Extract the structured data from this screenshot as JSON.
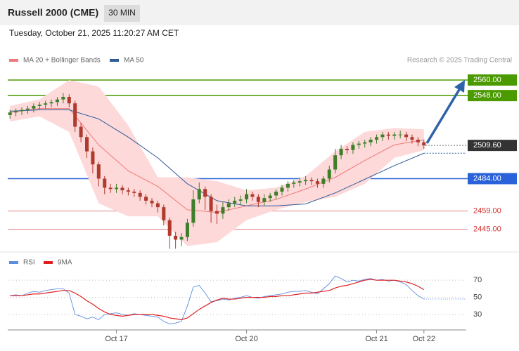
{
  "header": {
    "title": "Russell 2000 (CME)",
    "timeframe": "30 MIN",
    "timestamp": "Tuesday, October 21, 2025 11:20:27 AM CET"
  },
  "credit": "Research © 2025 Trading Central",
  "chart_data": [
    {
      "type": "candlestick",
      "xlim": [
        -0.5,
        70.5
      ],
      "ylim": [
        2428,
        2600
      ],
      "up_color": "#3f7f2a",
      "down_color": "#b03a2e",
      "open": [
        2533,
        2535,
        2536,
        2537,
        2538,
        2540,
        2541,
        2542,
        2543,
        2545,
        2547,
        2542,
        2524,
        2516,
        2505,
        2495,
        2484,
        2477,
        2476,
        2477,
        2475,
        2474,
        2473,
        2470,
        2467,
        2465,
        2462,
        2452,
        2440,
        2437,
        2439,
        2450,
        2468,
        2476,
        2470,
        2459,
        2457,
        2462,
        2465,
        2467,
        2468,
        2472,
        2470,
        2466,
        2469,
        2471,
        2474,
        2477,
        2480,
        2481,
        2482,
        2483,
        2482,
        2480,
        2484,
        2491,
        2502,
        2507,
        2506,
        2510,
        2511,
        2512,
        2514,
        2516,
        2518,
        2517,
        2518,
        2518,
        2516,
        2514,
        2512
      ],
      "high": [
        2537,
        2538,
        2539,
        2540,
        2542,
        2543,
        2544,
        2545,
        2547,
        2550,
        2549,
        2544,
        2527,
        2518,
        2508,
        2497,
        2486,
        2480,
        2480,
        2479,
        2477,
        2476,
        2475,
        2472,
        2469,
        2467,
        2464,
        2454,
        2443,
        2442,
        2453,
        2475,
        2481,
        2478,
        2472,
        2464,
        2466,
        2468,
        2470,
        2471,
        2476,
        2474,
        2472,
        2472,
        2473,
        2476,
        2479,
        2482,
        2483,
        2485,
        2486,
        2485,
        2484,
        2486,
        2494,
        2507,
        2510,
        2509,
        2512,
        2513,
        2514,
        2516,
        2518,
        2520,
        2520,
        2520,
        2521,
        2520,
        2518,
        2516,
        2514
      ],
      "low": [
        2530,
        2532,
        2533,
        2534,
        2535,
        2537,
        2538,
        2539,
        2540,
        2542,
        2539,
        2520,
        2512,
        2500,
        2488,
        2478,
        2472,
        2473,
        2473,
        2472,
        2471,
        2470,
        2467,
        2464,
        2462,
        2458,
        2448,
        2430,
        2430,
        2432,
        2436,
        2447,
        2465,
        2460,
        2450,
        2449,
        2453,
        2459,
        2462,
        2464,
        2465,
        2467,
        2462,
        2463,
        2466,
        2468,
        2471,
        2474,
        2477,
        2478,
        2479,
        2479,
        2477,
        2477,
        2481,
        2488,
        2499,
        2503,
        2503,
        2507,
        2508,
        2509,
        2511,
        2513,
        2514,
        2514,
        2515,
        2513,
        2511,
        2509,
        2507
      ],
      "close": [
        2535,
        2536,
        2537,
        2538,
        2540,
        2541,
        2542,
        2543,
        2545,
        2547,
        2542,
        2524,
        2516,
        2505,
        2495,
        2484,
        2477,
        2476,
        2477,
        2475,
        2474,
        2473,
        2470,
        2467,
        2465,
        2462,
        2452,
        2440,
        2437,
        2439,
        2450,
        2468,
        2476,
        2470,
        2459,
        2457,
        2462,
        2465,
        2467,
        2468,
        2472,
        2470,
        2466,
        2469,
        2471,
        2474,
        2477,
        2480,
        2481,
        2482,
        2483,
        2482,
        2480,
        2484,
        2491,
        2502,
        2507,
        2506,
        2510,
        2511,
        2512,
        2514,
        2516,
        2518,
        2517,
        2518,
        2518,
        2516,
        2514,
        2512,
        2509.6
      ],
      "series": [
        {
          "name": "MA 20 + Bollinger Bands",
          "color": "#f07a7a",
          "band_color": "#fdd9d9",
          "x": [
            0,
            5,
            10,
            15,
            20,
            25,
            30,
            35,
            40,
            45,
            50,
            55,
            60,
            65,
            70
          ],
          "values": [
            2535,
            2538,
            2538,
            2510,
            2490,
            2478,
            2460,
            2458,
            2463,
            2468,
            2476,
            2485,
            2498,
            2510,
            2514
          ],
          "upper": [
            2540,
            2545,
            2560,
            2555,
            2525,
            2485,
            2485,
            2482,
            2475,
            2477,
            2486,
            2505,
            2520,
            2523,
            2522
          ],
          "lower": [
            2528,
            2532,
            2520,
            2465,
            2455,
            2455,
            2432,
            2435,
            2452,
            2460,
            2466,
            2470,
            2480,
            2500,
            2506
          ]
        },
        {
          "name": "MA 50",
          "color": "#2f5b9a",
          "x": [
            0,
            5,
            10,
            15,
            20,
            25,
            30,
            35,
            40,
            45,
            50,
            55,
            60,
            65,
            70
          ],
          "values": [
            2536,
            2537,
            2537,
            2530,
            2516,
            2500,
            2480,
            2467,
            2463,
            2463,
            2464.5,
            2473,
            2483.5,
            2494,
            2503.6
          ]
        }
      ],
      "levels": [
        {
          "value": 2560,
          "label": "2560.00",
          "color": "#4a9a00",
          "boxed": true
        },
        {
          "value": 2548,
          "label": "2548.00",
          "color": "#4a9a00",
          "boxed": true
        },
        {
          "value": 2509.6,
          "label": "2509.60",
          "color": "#333333",
          "boxed": true
        },
        {
          "value": 2484,
          "label": "2484.00",
          "color": "#2a62d9",
          "boxed": true
        },
        {
          "value": 2459,
          "label": "2459.00",
          "color": "#d32f2f",
          "boxed": false
        },
        {
          "value": 2445,
          "label": "2445.00",
          "color": "#d32f2f",
          "boxed": false
        }
      ]
    },
    {
      "type": "line",
      "xlim": [
        -0.5,
        70.5
      ],
      "ylim": [
        12,
        98
      ],
      "yticks": [
        70,
        50,
        30
      ],
      "xticks": [
        {
          "value": 18,
          "label": "Oct 17"
        },
        {
          "value": 40,
          "label": "Oct 20"
        },
        {
          "value": 62,
          "label": "Oct 21"
        },
        {
          "value": 70,
          "label": "Oct 22"
        }
      ],
      "series": [
        {
          "name": "RSI",
          "color": "#5b8de0",
          "values": [
            52,
            53,
            52,
            55,
            57,
            56,
            58,
            59,
            60,
            60,
            55,
            30,
            28,
            25,
            27,
            24,
            30,
            31,
            32,
            30,
            29,
            31,
            30,
            29,
            28,
            27,
            22,
            19,
            20,
            22,
            40,
            62,
            64,
            55,
            45,
            46,
            48,
            47,
            49,
            50,
            52,
            50,
            49,
            51,
            52,
            53,
            54,
            56,
            57,
            57,
            58,
            56,
            54,
            60,
            66,
            75,
            72,
            68,
            70,
            69,
            71,
            72,
            70,
            71,
            69,
            70,
            68,
            65,
            58,
            52,
            48
          ]
        },
        {
          "name": "9MA",
          "color": "#e02020",
          "values": [
            52,
            52,
            52,
            53,
            54,
            54,
            55,
            56,
            57,
            58,
            58,
            55,
            51,
            46,
            42,
            37,
            33,
            30,
            29,
            28,
            29,
            30,
            30,
            30,
            30,
            29,
            28,
            26,
            25,
            24,
            26,
            31,
            36,
            40,
            44,
            47,
            49,
            48,
            48,
            49,
            50,
            50,
            50,
            50,
            51,
            51,
            52,
            52,
            53,
            54,
            55,
            55,
            56,
            57,
            58,
            61,
            63,
            64,
            66,
            68,
            70,
            71,
            70,
            70,
            70,
            70,
            69,
            68,
            66,
            63,
            59
          ]
        }
      ]
    }
  ]
}
